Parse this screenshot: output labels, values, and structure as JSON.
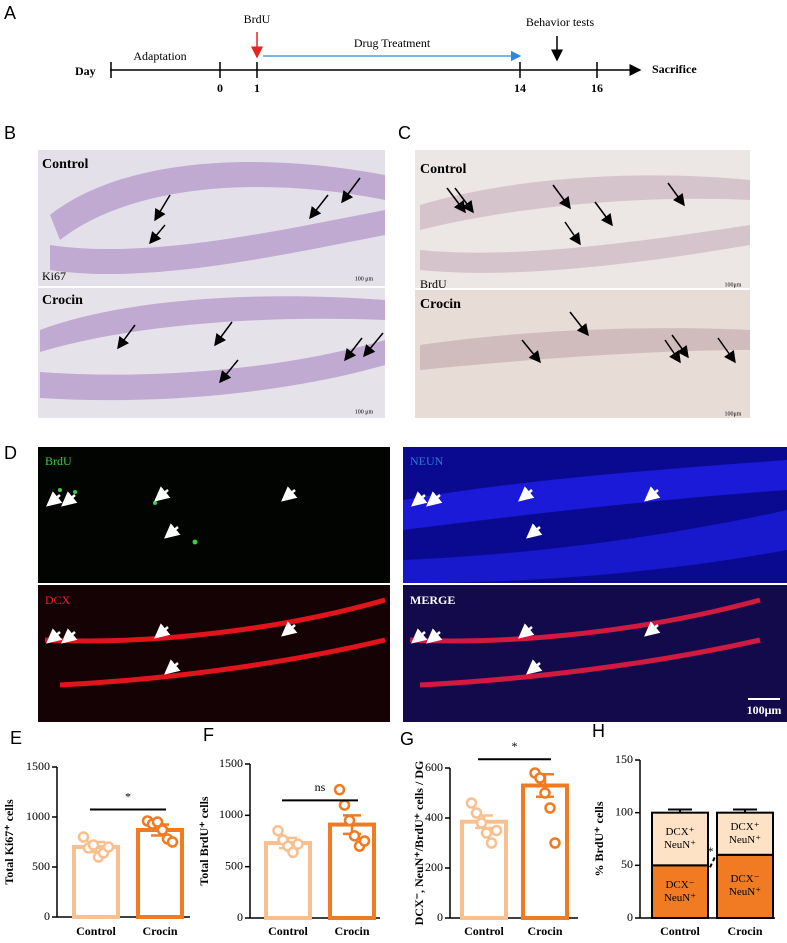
{
  "timeline": {
    "panel": "A",
    "day": "Day",
    "adaptation": "Adaptation",
    "brdu": "BrdU",
    "drug": "Drug Treatment",
    "behavior": "Behavior tests",
    "ticks": [
      "0",
      "1",
      "14",
      "16"
    ],
    "end": "Sacrifice"
  },
  "micrographs": [
    {
      "label": "B",
      "top": {
        "group": "Control",
        "stain": "Ki67",
        "scale": "100 μm"
      },
      "bottom": {
        "group": "Crocin",
        "scale": "100 μm"
      }
    },
    {
      "label": "C",
      "top": {
        "group": "Control",
        "stain": "BrdU",
        "scale": "100μm"
      },
      "bottom": {
        "group": "Crocin",
        "scale": "100μm"
      }
    }
  ],
  "fluorescence": {
    "label": "D",
    "channels": [
      "BrdU",
      "NEUN",
      "DCX",
      "MERGE"
    ],
    "scale": "100μm"
  },
  "chart_data": [
    {
      "type": "bar",
      "panel": "E",
      "ylabel": "Total Ki67⁺ cells",
      "categories": [
        "Control",
        "Crocin"
      ],
      "colors": [
        "#f9c08f",
        "#f07b22"
      ],
      "values": [
        700,
        870
      ],
      "errors": [
        50,
        55
      ],
      "points": [
        [
          800,
          690,
          720,
          600,
          640,
          700
        ],
        [
          960,
          930,
          950,
          870,
          780,
          750
        ]
      ],
      "ylim": [
        0,
        1500
      ],
      "yticks": [
        0,
        500,
        1000,
        1500
      ],
      "significance": "*"
    },
    {
      "type": "bar",
      "panel": "F",
      "ylabel": "Total BrdU⁺ cells",
      "categories": [
        "Control",
        "Crocin"
      ],
      "colors": [
        "#f9c08f",
        "#f07b22"
      ],
      "values": [
        730,
        910
      ],
      "errors": [
        50,
        90
      ],
      "points": [
        [
          850,
          760,
          700,
          640,
          720
        ],
        [
          1250,
          1100,
          950,
          800,
          700,
          750
        ]
      ],
      "ylim": [
        0,
        1500
      ],
      "yticks": [
        0,
        500,
        1000,
        1500
      ],
      "significance": "ns"
    },
    {
      "type": "bar",
      "panel": "G",
      "ylabel": "DCX⁻, NeuN⁺/BrdU⁺ cells / DG",
      "categories": [
        "Control",
        "Crocin"
      ],
      "colors": [
        "#f9c08f",
        "#f07b22"
      ],
      "values": [
        385,
        530
      ],
      "errors": [
        25,
        45
      ],
      "points": [
        [
          460,
          420,
          380,
          340,
          300,
          350
        ],
        [
          580,
          560,
          500,
          440,
          300
        ]
      ],
      "ylim": [
        0,
        600
      ],
      "yticks": [
        0,
        200,
        400,
        600
      ],
      "significance": "*"
    },
    {
      "type": "stacked_bar",
      "panel": "H",
      "ylabel": "% BrdU⁺ cells",
      "categories": [
        "Control",
        "Crocin"
      ],
      "series": [
        {
          "name": "DCX⁻ NeuN⁺",
          "color": "#f07b22",
          "values": [
            50,
            60
          ],
          "errors": [
            3,
            3
          ]
        },
        {
          "name": "DCX⁺ NeuN⁺",
          "color": "#fde2c6",
          "values": [
            50,
            40
          ],
          "errors": [
            3,
            3
          ]
        }
      ],
      "ylim": [
        0,
        150
      ],
      "yticks": [
        0,
        50,
        100,
        150
      ],
      "significance": "*"
    }
  ]
}
